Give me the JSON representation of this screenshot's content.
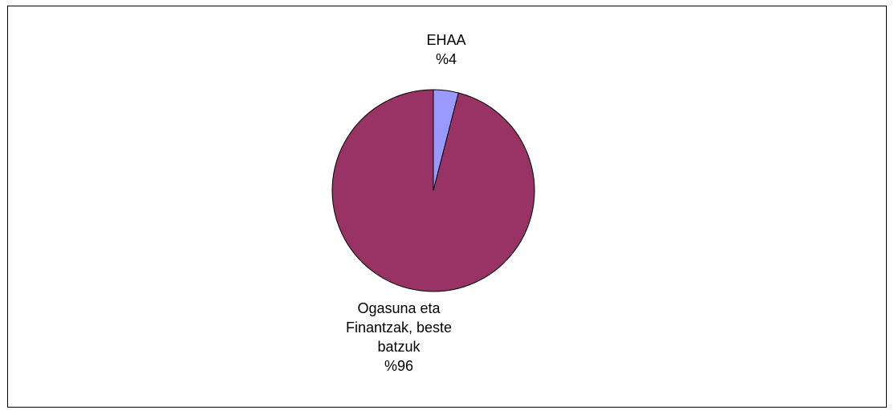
{
  "chart_data": {
    "type": "pie",
    "title": "",
    "slices": [
      {
        "label_lines": [
          "EHAA"
        ],
        "percent_label": "%4",
        "value": 4,
        "color": "#9999ff"
      },
      {
        "label_lines": [
          "Ogasuna eta",
          "Finantzak, beste",
          "batzuk"
        ],
        "percent_label": "%96",
        "value": 96,
        "color": "#993366"
      }
    ],
    "legend": "none",
    "start": "12 o'clock",
    "direction": "clockwise",
    "outline_color": "#000000"
  }
}
